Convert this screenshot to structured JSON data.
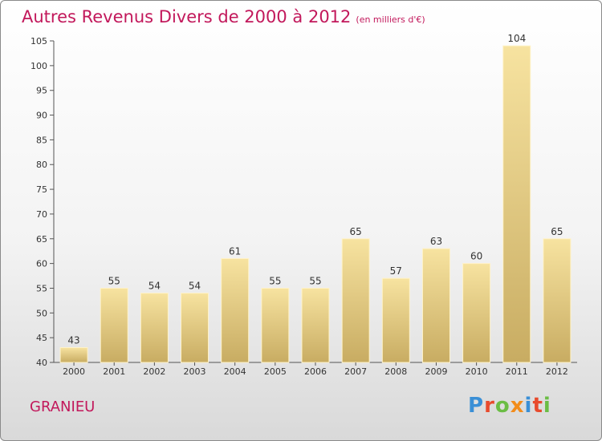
{
  "header": {
    "title": "Autres Revenus Divers de 2000 à 2012",
    "unit": "(en milliers d'€)"
  },
  "footer": {
    "commune": "GRANIEU",
    "logo": {
      "text": "Proxiti",
      "letters": [
        "P",
        "r",
        "o",
        "x",
        "i",
        "t",
        "i"
      ]
    }
  },
  "colors": {
    "title": "#c2185b",
    "bar_light": "#f7e3a0",
    "bar_dark": "#c8ac62",
    "logo": [
      "#3a8fd6",
      "#e84b2d",
      "#6bbd45",
      "#f28c1b",
      "#3a8fd6",
      "#e84b2d",
      "#6bbd45"
    ]
  },
  "chart_data": {
    "type": "bar",
    "title": "Autres Revenus Divers de 2000 à 2012",
    "subtitle": "(en milliers d'€)",
    "categories": [
      "2000",
      "2001",
      "2002",
      "2003",
      "2004",
      "2005",
      "2006",
      "2007",
      "2008",
      "2009",
      "2010",
      "2011",
      "2012"
    ],
    "values": [
      43,
      55,
      54,
      54,
      61,
      55,
      55,
      65,
      57,
      63,
      60,
      104,
      65
    ],
    "ylim": [
      40,
      105
    ],
    "yticks": [
      40,
      45,
      50,
      55,
      60,
      65,
      70,
      75,
      80,
      85,
      90,
      95,
      100,
      105
    ],
    "grid": false,
    "data_labels": true
  }
}
